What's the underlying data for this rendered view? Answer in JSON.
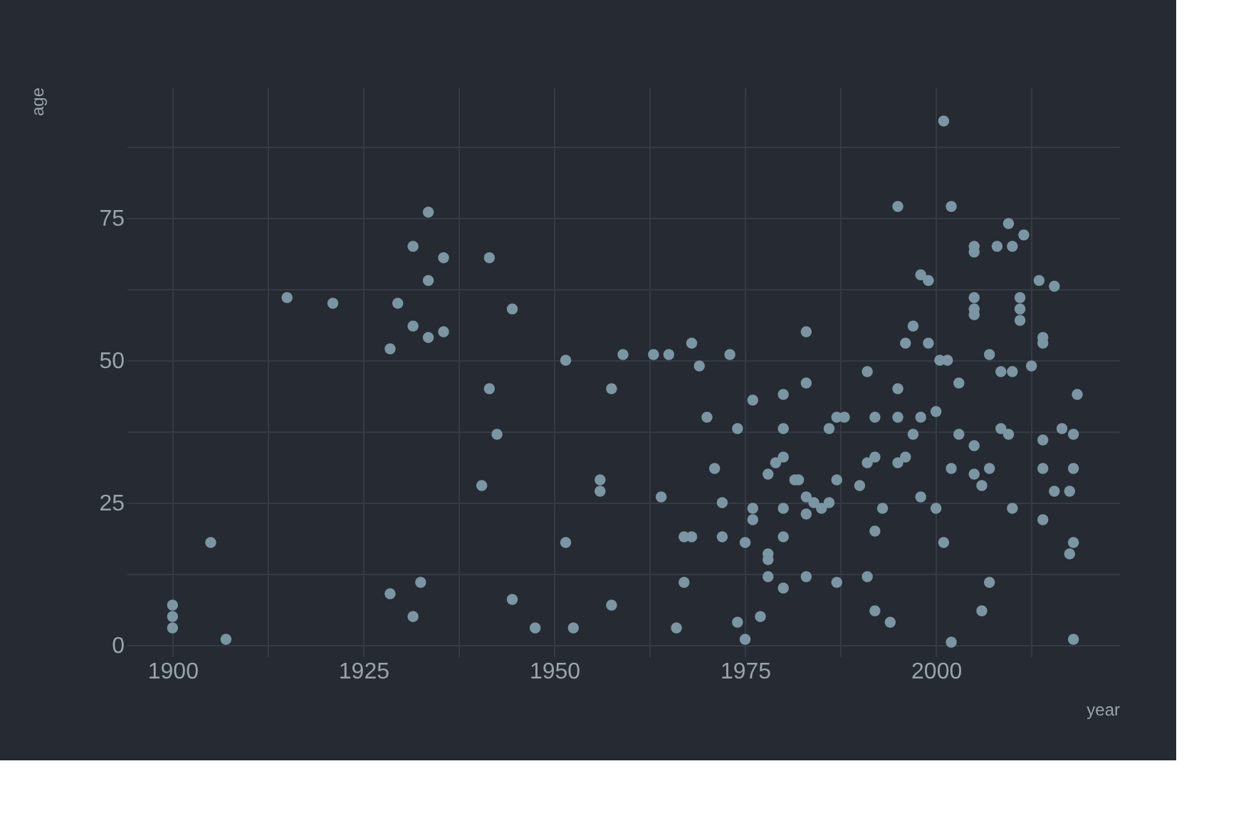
{
  "chart_data": {
    "type": "scatter",
    "xlabel": "year",
    "ylabel": "age",
    "x": [
      1900,
      1900,
      1900,
      1905,
      1907,
      1915,
      1921,
      1928.5,
      1929.5,
      1931.5,
      1933.5,
      1935.5,
      1933.5,
      1931.5,
      1933.5,
      1935.5,
      1928.5,
      1932.5,
      1931.5,
      1941.5,
      1944.5,
      1951.5,
      1959,
      1963,
      1965,
      1968,
      1969,
      1973,
      2001,
      1995,
      2002,
      2009.5,
      2011.5,
      2005,
      2005,
      2008,
      2010,
      1998,
      1999,
      2013.5,
      2015.5,
      2005,
      2005,
      2005,
      2011,
      2011,
      2011,
      1983,
      1997,
      1996,
      1999,
      2000.5,
      2001.5,
      2007,
      2008.5,
      2010,
      2012.5,
      2014,
      2014,
      1991,
      1941.5,
      1957.5,
      1942.5,
      1940.5,
      1956,
      1956,
      1964,
      1970,
      1976,
      1980,
      1974,
      1980,
      1971,
      1978,
      1979,
      1980,
      1981.5,
      1972,
      1976,
      1976,
      1980,
      1967,
      1968,
      1972,
      1975,
      1980,
      1978,
      1978,
      1978,
      1980,
      1967,
      1944.5,
      1957.5,
      1947.5,
      1952.5,
      1966,
      1974,
      1975,
      1977,
      1951.5,
      1983,
      1995,
      2003,
      2018.5,
      1987,
      1988,
      1992,
      1995,
      1998,
      2000,
      1986,
      1997,
      2003,
      2008.5,
      2009.5,
      2005,
      2014,
      2016.5,
      2018,
      1991,
      1992,
      1995,
      1996,
      2002,
      2005,
      2007,
      2006,
      2014,
      2018,
      2015.5,
      2017.5,
      1982,
      1987,
      1990,
      1983,
      1984,
      1985,
      1986,
      1983,
      1993,
      1998,
      2000,
      2010,
      2014,
      1992,
      2001,
      2018,
      2017.5,
      1983,
      1987,
      1991,
      2007,
      1992,
      1994,
      2006,
      2002,
      2018
    ],
    "series": [
      {
        "color": "#7b96a3",
        "values": [
          7,
          5,
          3,
          18,
          1,
          61,
          60,
          52,
          60,
          70,
          76,
          68,
          64,
          56,
          54,
          55,
          9,
          11,
          5,
          68,
          59,
          50,
          51,
          51,
          51,
          53,
          49,
          51,
          92,
          77,
          77,
          74,
          72,
          70,
          69,
          70,
          70,
          65,
          64,
          64,
          63,
          61,
          59,
          58,
          61,
          59,
          57,
          55,
          56,
          53,
          53,
          50,
          50,
          51,
          48,
          48,
          49,
          54,
          53,
          48,
          45,
          45,
          37,
          28,
          29,
          27,
          26,
          40,
          43,
          44,
          38,
          38,
          31,
          30,
          32,
          33,
          29,
          25,
          24,
          22,
          24,
          19,
          19,
          19,
          18,
          19,
          16,
          15,
          12,
          10,
          11,
          8,
          7,
          3,
          3,
          3,
          4,
          1,
          5,
          18,
          46,
          45,
          46,
          44,
          40,
          40,
          40,
          40,
          40,
          41,
          38,
          37,
          37,
          38,
          37,
          35,
          36,
          38,
          37,
          32,
          33,
          32,
          33,
          31,
          30,
          31,
          28,
          31,
          31,
          27,
          27,
          29,
          29,
          28,
          26,
          25,
          24,
          25,
          23,
          24,
          26,
          24,
          24,
          22,
          20,
          18,
          18,
          16,
          12,
          11,
          12,
          11,
          6,
          4,
          6,
          0.5,
          1
        ]
      }
    ],
    "marker": "circle",
    "xlim": [
      1894,
      2024
    ],
    "ylim": [
      -2,
      98
    ],
    "xticks": [
      1900,
      {
        "value": 1912.5,
        "label": null
      },
      1925,
      {
        "value": 1937.5,
        "label": null
      },
      1950,
      {
        "value": 1962.5,
        "label": null
      },
      1975,
      {
        "value": 1987.5,
        "label": null
      },
      2000,
      {
        "value": 2012.5,
        "label": null
      }
    ],
    "yticks": [
      0,
      {
        "value": 12.5,
        "label": null
      },
      25,
      {
        "value": 37.5,
        "label": null
      },
      50,
      {
        "value": 62.5,
        "label": null
      },
      75,
      {
        "value": 87.5,
        "label": null
      }
    ],
    "grid": true,
    "legend": false
  }
}
